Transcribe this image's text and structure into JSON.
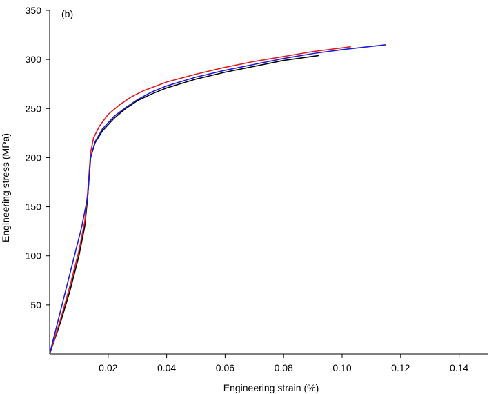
{
  "chart_data": {
    "type": "line",
    "panel_label": "(b)",
    "title": "",
    "xlabel": "Engineering strain (%)",
    "ylabel": "Engineering stress (MPa)",
    "xlim": [
      0,
      0.15
    ],
    "ylim": [
      0,
      350
    ],
    "x_ticks": [
      0.02,
      0.04,
      0.06,
      0.08,
      0.1,
      0.12,
      0.14
    ],
    "x_tick_labels": [
      "0.02",
      "0.04",
      "0.06",
      "0.08",
      "0.10",
      "0.12",
      "0.14"
    ],
    "y_ticks": [
      50,
      100,
      150,
      200,
      250,
      300,
      350
    ],
    "y_tick_labels": [
      "50",
      "100",
      "150",
      "200",
      "250",
      "300",
      "350"
    ],
    "grid": false,
    "legend": "none",
    "series": [
      {
        "color": "#000000",
        "points": [
          [
            0,
            0
          ],
          [
            0.004,
            35
          ],
          [
            0.007,
            65
          ],
          [
            0.01,
            100
          ],
          [
            0.012,
            130
          ],
          [
            0.013,
            160
          ],
          [
            0.014,
            200
          ],
          [
            0.0155,
            215
          ],
          [
            0.018,
            227
          ],
          [
            0.022,
            240
          ],
          [
            0.026,
            250
          ],
          [
            0.03,
            258
          ],
          [
            0.035,
            265
          ],
          [
            0.04,
            271
          ],
          [
            0.05,
            280
          ],
          [
            0.06,
            287
          ],
          [
            0.07,
            293
          ],
          [
            0.08,
            299
          ],
          [
            0.092,
            304
          ]
        ]
      },
      {
        "color": "#e0191f",
        "points": [
          [
            0,
            0
          ],
          [
            0.004,
            38
          ],
          [
            0.007,
            70
          ],
          [
            0.01,
            105
          ],
          [
            0.012,
            135
          ],
          [
            0.013,
            165
          ],
          [
            0.014,
            205
          ],
          [
            0.015,
            220
          ],
          [
            0.017,
            232
          ],
          [
            0.02,
            244
          ],
          [
            0.024,
            254
          ],
          [
            0.028,
            262
          ],
          [
            0.032,
            268
          ],
          [
            0.04,
            277
          ],
          [
            0.05,
            285
          ],
          [
            0.06,
            292
          ],
          [
            0.07,
            298
          ],
          [
            0.08,
            303
          ],
          [
            0.09,
            308
          ],
          [
            0.103,
            313
          ]
        ]
      },
      {
        "color": "#1a1adc",
        "points": [
          [
            0,
            0
          ],
          [
            0.011,
            130
          ],
          [
            0.013,
            160
          ],
          [
            0.014,
            200
          ],
          [
            0.0155,
            216
          ],
          [
            0.018,
            229
          ],
          [
            0.022,
            242
          ],
          [
            0.026,
            251
          ],
          [
            0.03,
            259
          ],
          [
            0.035,
            267
          ],
          [
            0.04,
            273
          ],
          [
            0.05,
            282
          ],
          [
            0.06,
            289
          ],
          [
            0.07,
            295
          ],
          [
            0.08,
            301
          ],
          [
            0.09,
            306
          ],
          [
            0.1,
            310
          ],
          [
            0.115,
            315
          ]
        ]
      }
    ]
  }
}
